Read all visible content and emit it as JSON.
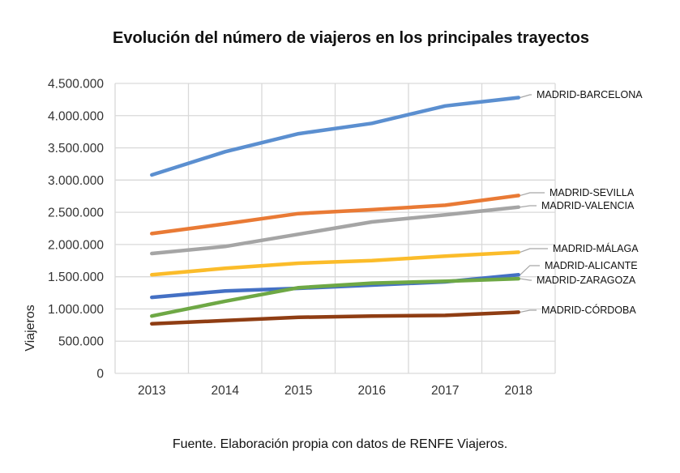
{
  "chart_data": {
    "type": "line",
    "title": "Evolución del número de viajeros en los principales trayectos",
    "xlabel": "",
    "ylabel": "Viajeros",
    "x": [
      "2013",
      "2014",
      "2015",
      "2016",
      "2017",
      "2018"
    ],
    "ylim": [
      0,
      4500000
    ],
    "yticks": [
      0,
      500000,
      1000000,
      1500000,
      2000000,
      2500000,
      3000000,
      3500000,
      4000000,
      4500000
    ],
    "ytick_labels": [
      "0",
      "500.000",
      "1.000.000",
      "1.500.000",
      "2.000.000",
      "2.500.000",
      "3.000.000",
      "3.500.000",
      "4.000.000",
      "4.500.000"
    ],
    "grid": true,
    "legend": "inline labels at right end of each line",
    "series": [
      {
        "name": "MADRID-BARCELONA",
        "color": "#5b8fd0",
        "values": [
          3080000,
          3440000,
          3720000,
          3880000,
          4150000,
          4280000
        ]
      },
      {
        "name": "MADRID-SEVILLA",
        "color": "#e97a35",
        "values": [
          2170000,
          2320000,
          2480000,
          2540000,
          2610000,
          2760000
        ]
      },
      {
        "name": "MADRID-VALENCIA",
        "color": "#a5a5a5",
        "values": [
          1860000,
          1970000,
          2160000,
          2350000,
          2460000,
          2580000
        ]
      },
      {
        "name": "MADRID-MÁLAGA",
        "color": "#fbbc2a",
        "values": [
          1530000,
          1630000,
          1710000,
          1750000,
          1820000,
          1880000
        ]
      },
      {
        "name": "MADRID-ALICANTE",
        "color": "#4470c4",
        "values": [
          1180000,
          1280000,
          1320000,
          1370000,
          1420000,
          1530000
        ]
      },
      {
        "name": "MADRID-ZARAGOZA",
        "color": "#6ea845",
        "values": [
          890000,
          1120000,
          1330000,
          1400000,
          1430000,
          1470000
        ]
      },
      {
        "name": "MADRID-CÓRDOBA",
        "color": "#8f3d13",
        "values": [
          770000,
          820000,
          870000,
          890000,
          900000,
          950000
        ]
      }
    ]
  },
  "source_note": "Fuente. Elaboración propia con datos de RENFE Viajeros."
}
